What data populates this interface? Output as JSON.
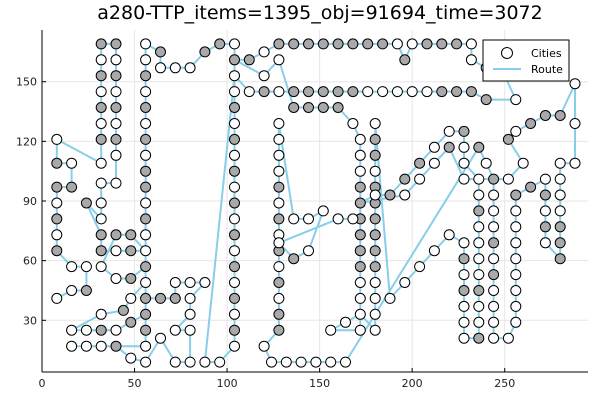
{
  "chart_data": {
    "type": "scatter",
    "title": "a280-TTP_items=1395_obj=91694_time=3072",
    "xlabel": "",
    "ylabel": "",
    "xlim": [
      0,
      295
    ],
    "ylim": [
      4,
      176
    ],
    "x_ticks": [
      0,
      50,
      100,
      150,
      200,
      250
    ],
    "y_ticks": [
      30,
      60,
      90,
      120,
      150
    ],
    "grid": true,
    "legend_position": "top-right",
    "colors": {
      "route": "#87CEEB",
      "city_edge": "#000000",
      "city_fill_open": "#ffffff",
      "city_fill_item": "#a9a9a9"
    },
    "series": [
      {
        "name": "Cities",
        "kind": "markers"
      },
      {
        "name": "Route",
        "kind": "line"
      }
    ],
    "route": [
      [
        8,
        41
      ],
      [
        16,
        45
      ],
      [
        24,
        45
      ],
      [
        24,
        57
      ],
      [
        16,
        57
      ],
      [
        8,
        65
      ],
      [
        8,
        73
      ],
      [
        8,
        81
      ],
      [
        8,
        89
      ],
      [
        8,
        97
      ],
      [
        16,
        97
      ],
      [
        16,
        109
      ],
      [
        8,
        109
      ],
      [
        8,
        121
      ],
      [
        32,
        109
      ],
      [
        32,
        121
      ],
      [
        32,
        129
      ],
      [
        32,
        137
      ],
      [
        32,
        145
      ],
      [
        32,
        153
      ],
      [
        32,
        161
      ],
      [
        32,
        169
      ],
      [
        40,
        169
      ],
      [
        40,
        161
      ],
      [
        40,
        153
      ],
      [
        40,
        145
      ],
      [
        40,
        137
      ],
      [
        40,
        129
      ],
      [
        40,
        121
      ],
      [
        40,
        113
      ],
      [
        40,
        99
      ],
      [
        32,
        99
      ],
      [
        32,
        89
      ],
      [
        32,
        81
      ],
      [
        24,
        89
      ],
      [
        32,
        73
      ],
      [
        32,
        65
      ],
      [
        40,
        65
      ],
      [
        48,
        65
      ],
      [
        56,
        65
      ],
      [
        48,
        73
      ],
      [
        40,
        73
      ],
      [
        32,
        57
      ],
      [
        40,
        51
      ],
      [
        48,
        51
      ],
      [
        56,
        57
      ],
      [
        56,
        49
      ],
      [
        48,
        41
      ],
      [
        44,
        35
      ],
      [
        32,
        33
      ],
      [
        16,
        25
      ],
      [
        24,
        25
      ],
      [
        32,
        25
      ],
      [
        40,
        25
      ],
      [
        48,
        29
      ],
      [
        56,
        33
      ],
      [
        56,
        41
      ],
      [
        64,
        41
      ],
      [
        72,
        41
      ],
      [
        72,
        49
      ],
      [
        80,
        49
      ],
      [
        88,
        49
      ],
      [
        80,
        41
      ],
      [
        80,
        33
      ],
      [
        72,
        25
      ],
      [
        80,
        25
      ],
      [
        80,
        9
      ],
      [
        72,
        9
      ],
      [
        64,
        21
      ],
      [
        56,
        9
      ],
      [
        48,
        11
      ],
      [
        40,
        17
      ],
      [
        32,
        17
      ],
      [
        24,
        17
      ],
      [
        16,
        17
      ],
      [
        56,
        17
      ],
      [
        56,
        25
      ],
      [
        56,
        33
      ],
      [
        56,
        49
      ],
      [
        56,
        57
      ],
      [
        56,
        65
      ],
      [
        56,
        73
      ],
      [
        56,
        81
      ],
      [
        56,
        89
      ],
      [
        56,
        97
      ],
      [
        56,
        105
      ],
      [
        56,
        113
      ],
      [
        56,
        121
      ],
      [
        56,
        129
      ],
      [
        56,
        137
      ],
      [
        56,
        145
      ],
      [
        56,
        153
      ],
      [
        56,
        161
      ],
      [
        56,
        169
      ],
      [
        64,
        165
      ],
      [
        64,
        157
      ],
      [
        72,
        157
      ],
      [
        80,
        157
      ],
      [
        88,
        165
      ],
      [
        96,
        169
      ],
      [
        104,
        169
      ],
      [
        104,
        161
      ],
      [
        104,
        153
      ],
      [
        104,
        145
      ],
      [
        104,
        137
      ],
      [
        104,
        129
      ],
      [
        104,
        121
      ],
      [
        104,
        113
      ],
      [
        104,
        105
      ],
      [
        104,
        97
      ],
      [
        104,
        89
      ],
      [
        104,
        81
      ],
      [
        104,
        73
      ],
      [
        104,
        65
      ],
      [
        104,
        57
      ],
      [
        104,
        49
      ],
      [
        104,
        41
      ],
      [
        104,
        33
      ],
      [
        104,
        25
      ],
      [
        104,
        17
      ],
      [
        96,
        9
      ],
      [
        88,
        9
      ],
      [
        104,
        153
      ],
      [
        112,
        145
      ],
      [
        120,
        145
      ],
      [
        128,
        145
      ],
      [
        136,
        145
      ],
      [
        144,
        145
      ],
      [
        152,
        145
      ],
      [
        160,
        145
      ],
      [
        168,
        145
      ],
      [
        176,
        145
      ],
      [
        184,
        145
      ],
      [
        192,
        145
      ],
      [
        200,
        145
      ],
      [
        208,
        145
      ],
      [
        216,
        145
      ],
      [
        224,
        145
      ],
      [
        232,
        145
      ],
      [
        240,
        141
      ],
      [
        256,
        141
      ],
      [
        248,
        157
      ],
      [
        240,
        157
      ],
      [
        232,
        161
      ],
      [
        232,
        169
      ],
      [
        224,
        169
      ],
      [
        216,
        169
      ],
      [
        208,
        169
      ],
      [
        200,
        169
      ],
      [
        196,
        161
      ],
      [
        192,
        169
      ],
      [
        184,
        169
      ],
      [
        176,
        169
      ],
      [
        168,
        169
      ],
      [
        160,
        169
      ],
      [
        152,
        169
      ],
      [
        144,
        169
      ],
      [
        136,
        169
      ],
      [
        128,
        169
      ],
      [
        120,
        165
      ],
      [
        112,
        161
      ],
      [
        104,
        161
      ],
      [
        120,
        153
      ],
      [
        128,
        161
      ],
      [
        136,
        137
      ],
      [
        144,
        137
      ],
      [
        152,
        137
      ],
      [
        160,
        137
      ],
      [
        168,
        129
      ],
      [
        172,
        121
      ],
      [
        172,
        113
      ],
      [
        172,
        105
      ],
      [
        172,
        97
      ],
      [
        172,
        89
      ],
      [
        172,
        81
      ],
      [
        172,
        73
      ],
      [
        172,
        65
      ],
      [
        172,
        57
      ],
      [
        172,
        49
      ],
      [
        172,
        41
      ],
      [
        172,
        33
      ],
      [
        172,
        25
      ],
      [
        156,
        25
      ],
      [
        164,
        29
      ],
      [
        172,
        33
      ],
      [
        180,
        25
      ],
      [
        180,
        33
      ],
      [
        180,
        41
      ],
      [
        180,
        49
      ],
      [
        180,
        57
      ],
      [
        180,
        65
      ],
      [
        180,
        73
      ],
      [
        180,
        81
      ],
      [
        180,
        89
      ],
      [
        180,
        97
      ],
      [
        180,
        105
      ],
      [
        180,
        113
      ],
      [
        180,
        121
      ],
      [
        180,
        129
      ],
      [
        188,
        41
      ],
      [
        196,
        49
      ],
      [
        204,
        57
      ],
      [
        212,
        65
      ],
      [
        220,
        73
      ],
      [
        228,
        69
      ],
      [
        228,
        61
      ],
      [
        228,
        53
      ],
      [
        228,
        45
      ],
      [
        228,
        37
      ],
      [
        228,
        29
      ],
      [
        228,
        21
      ],
      [
        236,
        21
      ],
      [
        236,
        29
      ],
      [
        236,
        37
      ],
      [
        236,
        45
      ],
      [
        236,
        53
      ],
      [
        236,
        61
      ],
      [
        236,
        69
      ],
      [
        236,
        77
      ],
      [
        236,
        85
      ],
      [
        236,
        93
      ],
      [
        236,
        101
      ],
      [
        228,
        109
      ],
      [
        228,
        117
      ],
      [
        228,
        125
      ],
      [
        220,
        125
      ],
      [
        212,
        117
      ],
      [
        204,
        109
      ],
      [
        196,
        101
      ],
      [
        188,
        93
      ],
      [
        180,
        93
      ],
      [
        172,
        89
      ],
      [
        196,
        93
      ],
      [
        204,
        101
      ],
      [
        212,
        109
      ],
      [
        220,
        117
      ],
      [
        228,
        101
      ],
      [
        236,
        101
      ],
      [
        252,
        101
      ],
      [
        260,
        109
      ],
      [
        252,
        121
      ],
      [
        256,
        125
      ],
      [
        264,
        129
      ],
      [
        272,
        133
      ],
      [
        280,
        133
      ],
      [
        288,
        149
      ],
      [
        288,
        129
      ],
      [
        288,
        109
      ],
      [
        280,
        109
      ],
      [
        280,
        101
      ],
      [
        280,
        93
      ],
      [
        280,
        85
      ],
      [
        280,
        77
      ],
      [
        280,
        69
      ],
      [
        280,
        61
      ],
      [
        272,
        69
      ],
      [
        272,
        77
      ],
      [
        272,
        85
      ],
      [
        272,
        93
      ],
      [
        272,
        101
      ],
      [
        264,
        97
      ],
      [
        256,
        93
      ],
      [
        256,
        85
      ],
      [
        256,
        77
      ],
      [
        256,
        69
      ],
      [
        256,
        61
      ],
      [
        256,
        53
      ],
      [
        256,
        45
      ],
      [
        256,
        37
      ],
      [
        256,
        29
      ],
      [
        252,
        21
      ],
      [
        244,
        21
      ],
      [
        244,
        29
      ],
      [
        244,
        37
      ],
      [
        244,
        45
      ],
      [
        244,
        53
      ],
      [
        244,
        61
      ],
      [
        244,
        69
      ],
      [
        244,
        77
      ],
      [
        244,
        85
      ],
      [
        244,
        93
      ],
      [
        244,
        101
      ],
      [
        240,
        109
      ],
      [
        236,
        117
      ],
      [
        164,
        9
      ],
      [
        156,
        9
      ],
      [
        148,
        9
      ],
      [
        140,
        9
      ],
      [
        132,
        9
      ],
      [
        124,
        9
      ],
      [
        120,
        17
      ],
      [
        128,
        25
      ],
      [
        128,
        33
      ],
      [
        128,
        41
      ],
      [
        128,
        49
      ],
      [
        128,
        57
      ],
      [
        128,
        65
      ],
      [
        128,
        73
      ],
      [
        128,
        81
      ],
      [
        128,
        89
      ],
      [
        128,
        97
      ],
      [
        128,
        105
      ],
      [
        128,
        113
      ],
      [
        128,
        121
      ],
      [
        128,
        129
      ],
      [
        136,
        81
      ],
      [
        144,
        81
      ],
      [
        152,
        85
      ],
      [
        144,
        65
      ],
      [
        136,
        61
      ],
      [
        128,
        69
      ],
      [
        160,
        81
      ],
      [
        168,
        81
      ]
    ],
    "cities_with_items": [
      [
        8,
        109
      ],
      [
        8,
        81
      ],
      [
        8,
        65
      ],
      [
        24,
        89
      ],
      [
        32,
        73
      ],
      [
        32,
        65
      ],
      [
        32,
        121
      ],
      [
        32,
        137
      ],
      [
        32,
        153
      ],
      [
        32,
        169
      ],
      [
        40,
        169
      ],
      [
        40,
        153
      ],
      [
        40,
        137
      ],
      [
        40,
        121
      ],
      [
        40,
        73
      ],
      [
        48,
        83
      ],
      [
        40,
        83
      ],
      [
        32,
        83
      ],
      [
        48,
        65
      ],
      [
        48,
        73
      ],
      [
        48,
        51
      ],
      [
        44,
        35
      ],
      [
        56,
        33
      ],
      [
        56,
        41
      ],
      [
        56,
        57
      ],
      [
        56,
        81
      ],
      [
        56,
        97
      ],
      [
        56,
        105
      ],
      [
        56,
        121
      ],
      [
        56,
        137
      ],
      [
        56,
        153
      ],
      [
        64,
        165
      ],
      [
        56,
        25
      ],
      [
        64,
        41
      ],
      [
        72,
        41
      ],
      [
        24,
        45
      ],
      [
        32,
        25
      ],
      [
        40,
        17
      ],
      [
        48,
        29
      ],
      [
        112,
        161
      ],
      [
        128,
        169
      ],
      [
        136,
        169
      ],
      [
        144,
        169
      ],
      [
        152,
        169
      ],
      [
        160,
        169
      ],
      [
        168,
        169
      ],
      [
        176,
        169
      ],
      [
        184,
        169
      ],
      [
        196,
        161
      ],
      [
        208,
        169
      ],
      [
        216,
        169
      ],
      [
        224,
        169
      ],
      [
        136,
        145
      ],
      [
        144,
        145
      ],
      [
        152,
        145
      ],
      [
        160,
        145
      ],
      [
        168,
        145
      ],
      [
        136,
        137
      ],
      [
        144,
        137
      ],
      [
        152,
        137
      ],
      [
        160,
        137
      ],
      [
        120,
        145
      ],
      [
        232,
        145
      ],
      [
        240,
        141
      ],
      [
        216,
        145
      ],
      [
        224,
        145
      ],
      [
        168,
        121
      ],
      [
        168,
        113
      ],
      [
        172,
        97
      ],
      [
        172,
        89
      ],
      [
        172,
        81
      ],
      [
        172,
        73
      ],
      [
        172,
        65
      ],
      [
        172,
        57
      ],
      [
        180,
        113
      ],
      [
        180,
        121
      ],
      [
        180,
        125
      ],
      [
        180,
        97
      ],
      [
        180,
        89
      ],
      [
        180,
        81
      ],
      [
        180,
        73
      ],
      [
        180,
        65
      ],
      [
        180,
        57
      ],
      [
        196,
        101
      ],
      [
        204,
        109
      ],
      [
        220,
        117
      ],
      [
        228,
        125
      ],
      [
        188,
        93
      ],
      [
        176,
        93
      ],
      [
        236,
        117
      ],
      [
        252,
        121
      ],
      [
        264,
        129
      ],
      [
        272,
        133
      ],
      [
        280,
        133
      ],
      [
        280,
        77
      ],
      [
        280,
        69
      ],
      [
        280,
        61
      ],
      [
        272,
        77
      ],
      [
        272,
        93
      ],
      [
        264,
        97
      ],
      [
        256,
        93
      ],
      [
        244,
        101
      ],
      [
        244,
        69
      ],
      [
        244,
        53
      ],
      [
        236,
        85
      ],
      [
        236,
        45
      ],
      [
        228,
        85
      ],
      [
        228,
        61
      ],
      [
        228,
        45
      ],
      [
        128,
        81
      ],
      [
        128,
        65
      ],
      [
        136,
        61
      ],
      [
        128,
        97
      ],
      [
        128,
        49
      ],
      [
        128,
        33
      ],
      [
        128,
        25
      ],
      [
        236,
        21
      ],
      [
        248,
        157
      ],
      [
        104,
        25
      ],
      [
        104,
        41
      ],
      [
        104,
        57
      ],
      [
        104,
        73
      ],
      [
        104,
        89
      ],
      [
        104,
        105
      ],
      [
        104,
        121
      ],
      [
        104,
        137
      ],
      [
        104,
        161
      ],
      [
        96,
        169
      ],
      [
        88,
        165
      ],
      [
        8,
        97
      ],
      [
        16,
        97
      ],
      [
        24,
        121
      ]
    ],
    "legend": {
      "cities_label": "Cities",
      "route_label": "Route"
    }
  }
}
